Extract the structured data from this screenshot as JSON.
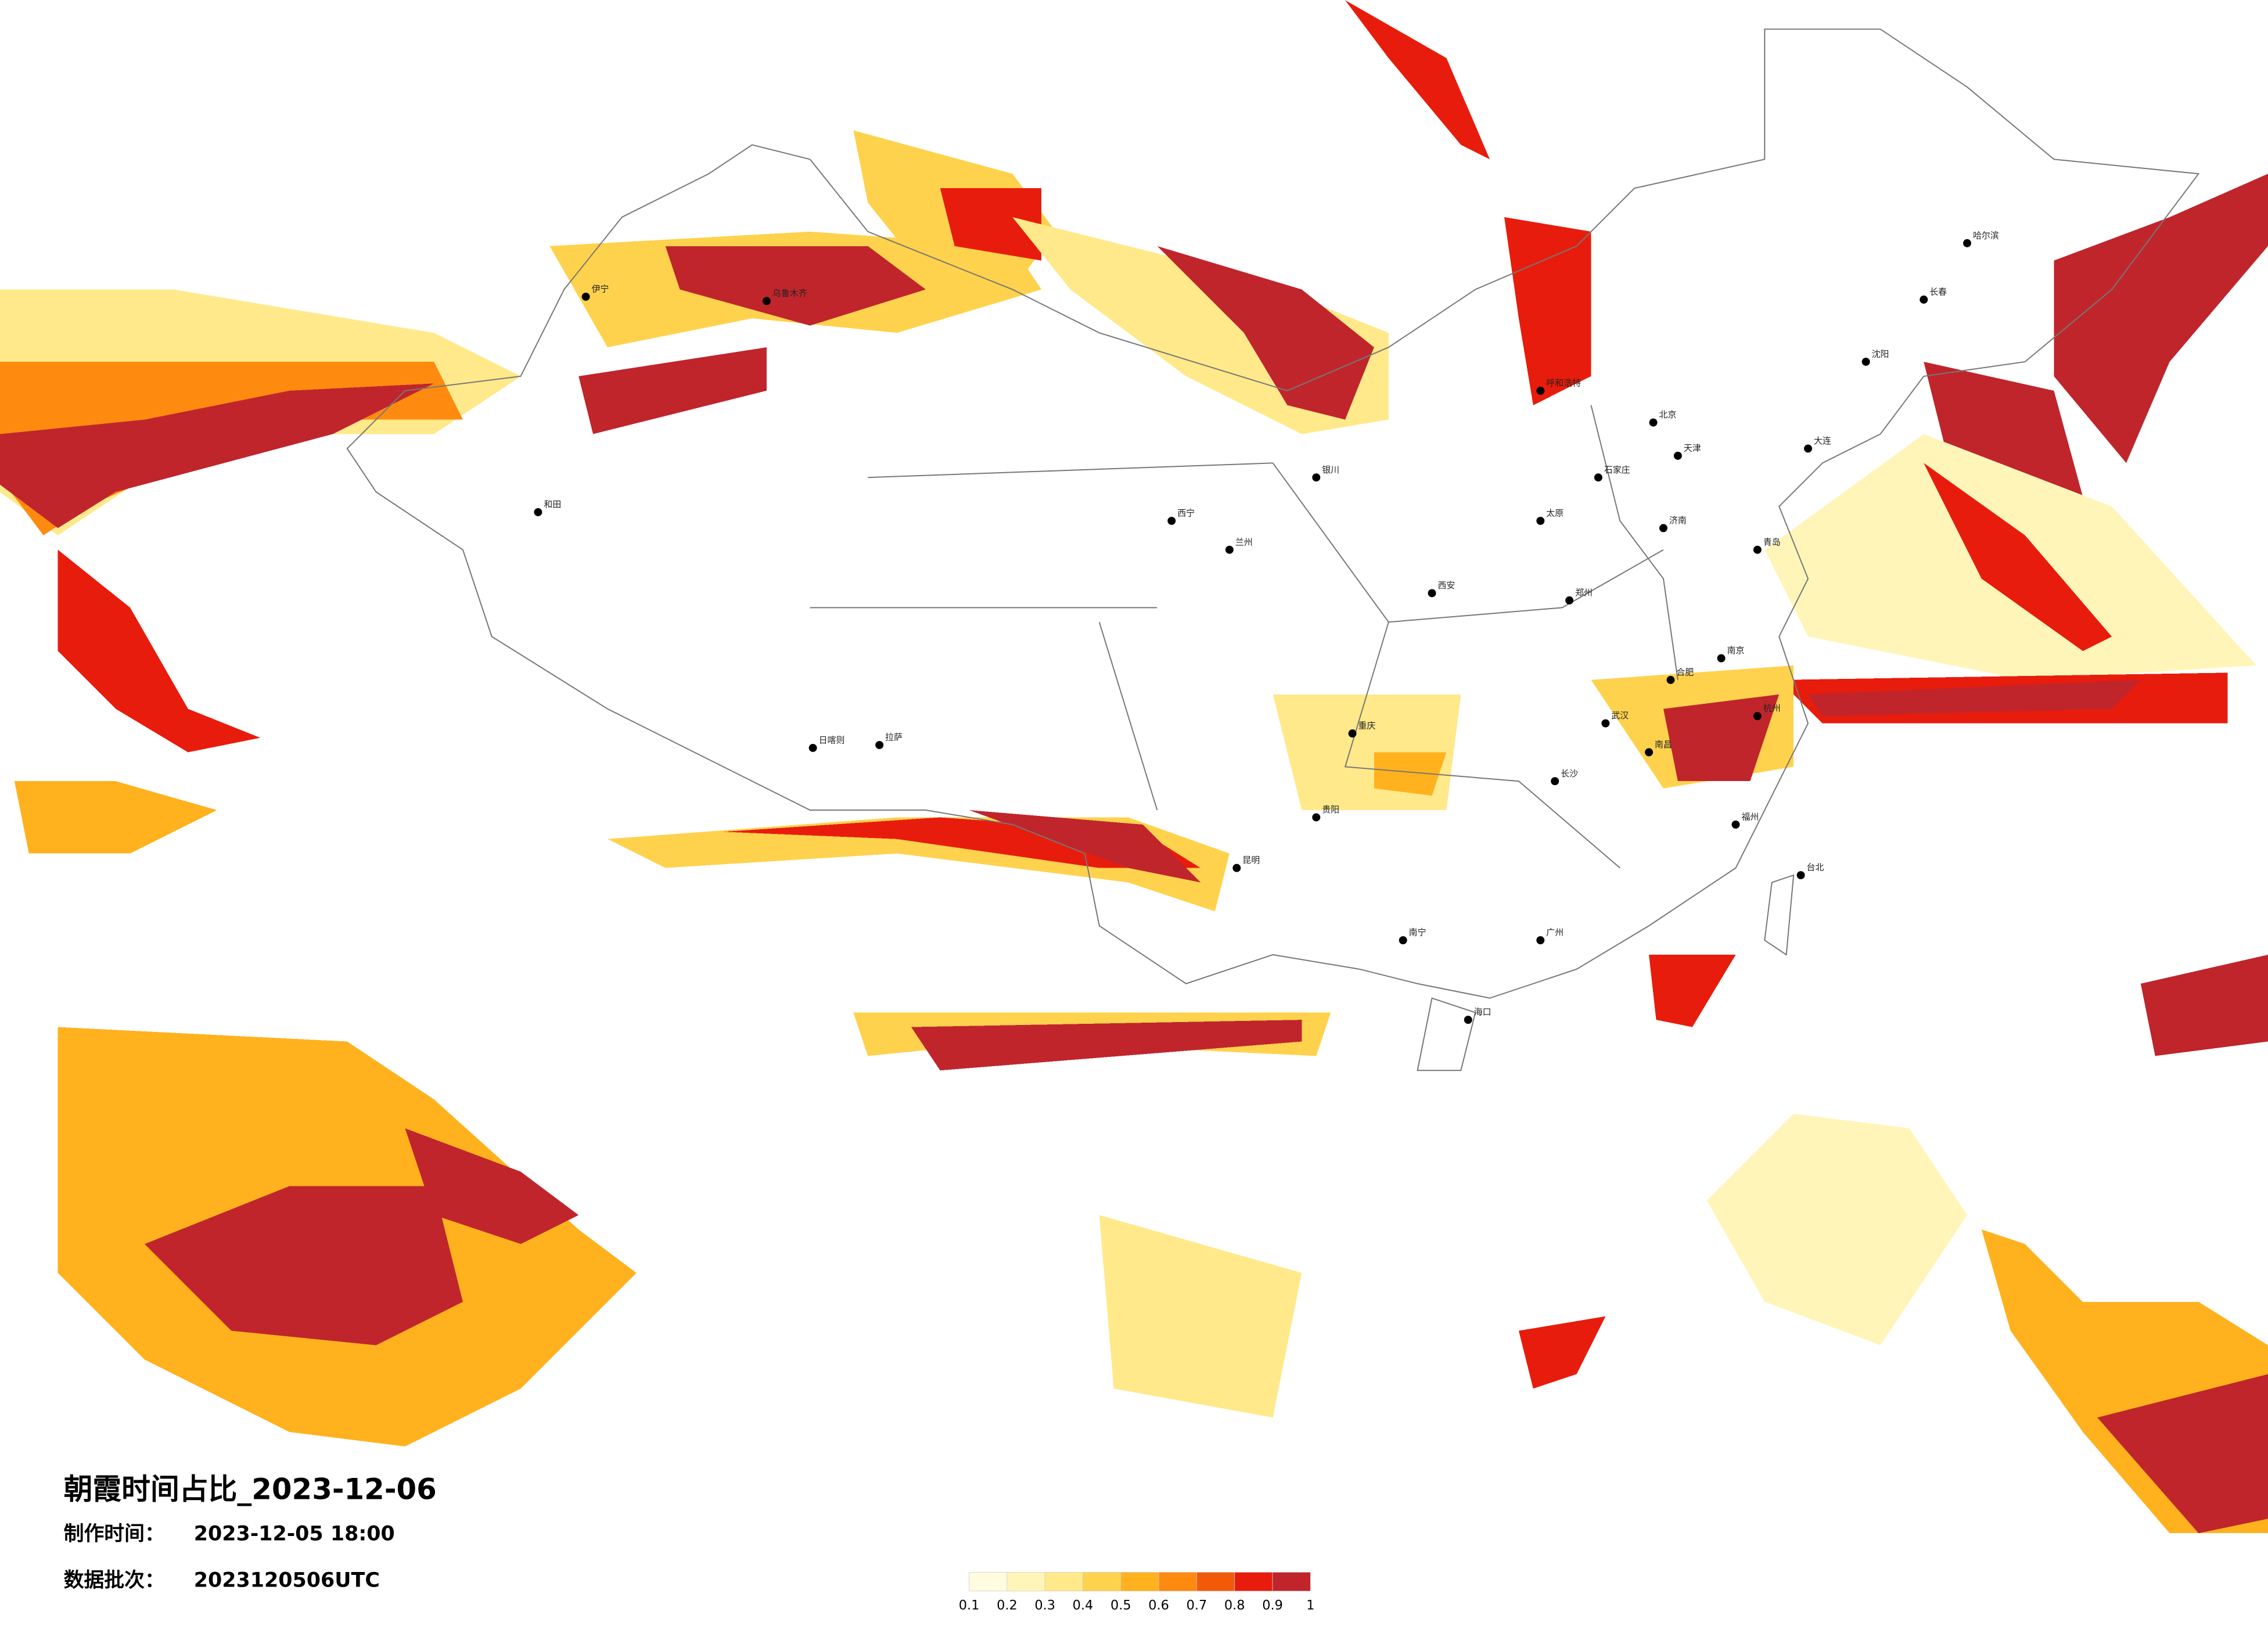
{
  "title": "朝霞时间占比_2023-12-06",
  "issue_label": "制作时间：",
  "issue_time": "2023-12-05 18:00",
  "batch_label": "数据批次：",
  "batch": "2023120506UTC",
  "legend": {
    "colors": [
      "#fffce0",
      "#fff5b8",
      "#ffe98a",
      "#ffd24d",
      "#ffb21e",
      "#ff8a10",
      "#f25a0a",
      "#e81c0c",
      "#c0252c"
    ],
    "ticks": [
      0.1,
      0.2,
      0.3,
      0.4,
      0.5,
      0.6,
      0.7,
      0.8,
      0.9,
      1
    ]
  },
  "cities": [
    "哈尔滨",
    "长春",
    "沈阳",
    "大连",
    "北京",
    "天津",
    "石家庄",
    "太原",
    "呼和浩特",
    "济南",
    "青岛",
    "郑州",
    "西安",
    "兰州",
    "西宁",
    "银川",
    "乌鲁木齐",
    "拉萨",
    "日喀则",
    "重庆",
    "贵阳",
    "昆明",
    "南宁",
    "广州",
    "海口",
    "福州",
    "杭州",
    "南京",
    "合肥",
    "南昌",
    "长沙",
    "武汉",
    "台北",
    "和田",
    "伊宁"
  ]
}
